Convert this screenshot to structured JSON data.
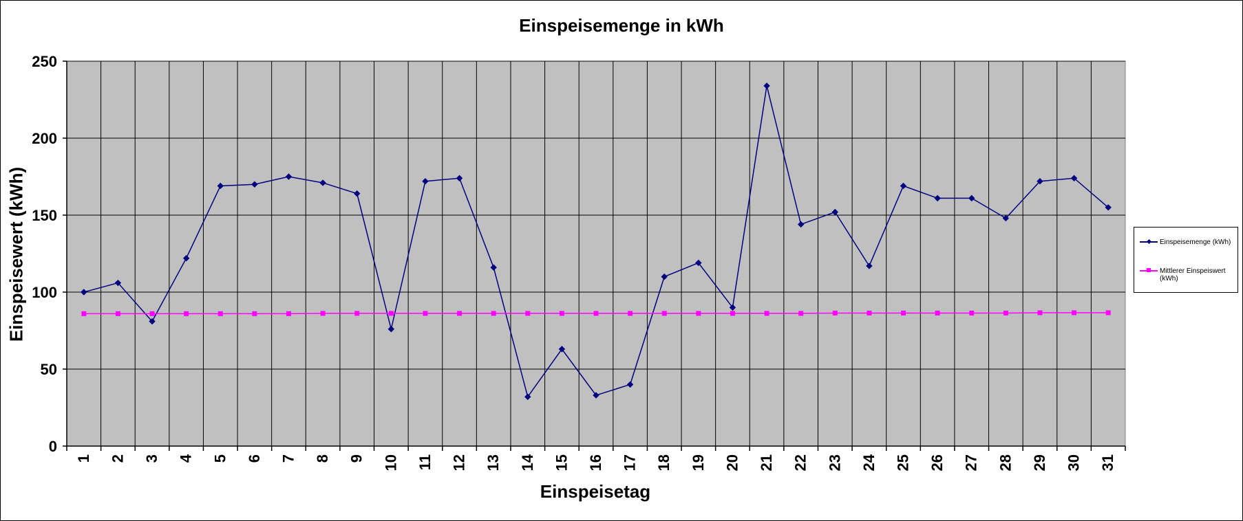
{
  "chart_data": {
    "type": "line",
    "title": "Einspeisemenge in kWh",
    "xlabel": "Einspeisetag",
    "ylabel": "Einspeisewert  (kWh)",
    "categories": [
      "1",
      "2",
      "3",
      "4",
      "5",
      "6",
      "7",
      "8",
      "9",
      "10",
      "11",
      "12",
      "13",
      "14",
      "15",
      "16",
      "17",
      "18",
      "19",
      "20",
      "21",
      "22",
      "23",
      "24",
      "25",
      "26",
      "27",
      "28",
      "29",
      "30",
      "31"
    ],
    "ylim": [
      0,
      250
    ],
    "yticks": [
      "0",
      "50",
      "100",
      "150",
      "200",
      "250"
    ],
    "ytick_values": [
      0,
      50,
      100,
      150,
      200,
      250
    ],
    "grid": true,
    "legend_position": "right",
    "plot_background": "#c0c0c0",
    "series": [
      {
        "name": "Einspeisemenge (kWh)",
        "color": "#000080",
        "marker": "diamond",
        "values": [
          100,
          106,
          81,
          122,
          169,
          170,
          175,
          171,
          164,
          76,
          172,
          174,
          116,
          32,
          63,
          33,
          40,
          110,
          119,
          90,
          234,
          144,
          152,
          117,
          169,
          161,
          161,
          148,
          172,
          174,
          155
        ]
      },
      {
        "name": "Mittlerer Einspeiswert (kWh)",
        "color": "#ff00ff",
        "marker": "square",
        "values": [
          86,
          86,
          86,
          86,
          86,
          86,
          86,
          86.2,
          86.2,
          86.2,
          86.2,
          86.2,
          86.2,
          86.2,
          86.2,
          86.2,
          86.2,
          86.2,
          86.2,
          86.2,
          86.2,
          86.2,
          86.4,
          86.4,
          86.4,
          86.4,
          86.4,
          86.4,
          86.6,
          86.6,
          86.6
        ]
      }
    ]
  }
}
